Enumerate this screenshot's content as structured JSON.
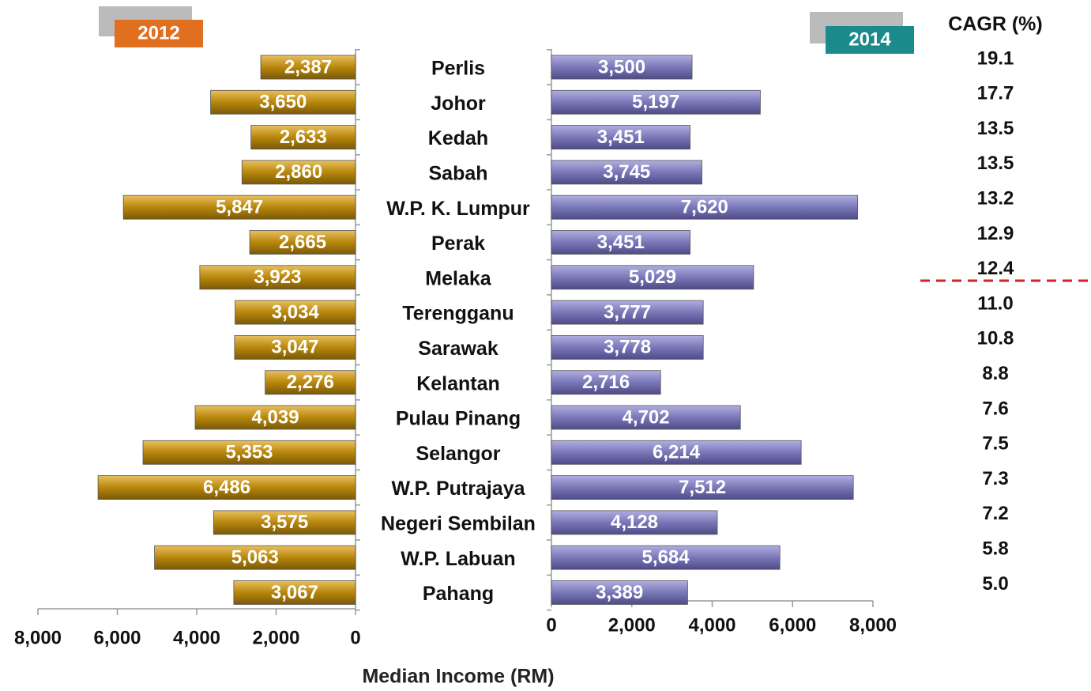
{
  "chart_data": {
    "type": "bar",
    "x_label": "Median Income (RM)",
    "categories": [
      "Perlis",
      "Johor",
      "Kedah",
      "Sabah",
      "W.P. K. Lumpur",
      "Perak",
      "Melaka",
      "Terengganu",
      "Sarawak",
      "Kelantan",
      "Pulau Pinang",
      "Selangor",
      "W.P. Putrajaya",
      "Negeri Sembilan",
      "W.P. Labuan",
      "Pahang"
    ],
    "series": [
      {
        "name": "2012",
        "color": "#b8860b",
        "legend_color": "#e07020",
        "values": [
          2387,
          3650,
          2633,
          2860,
          5847,
          2665,
          3923,
          3034,
          3047,
          2276,
          4039,
          5353,
          6486,
          3575,
          5063,
          3067
        ],
        "value_labels": [
          "2,387",
          "3,650",
          "2,633",
          "2,860",
          "5,847",
          "2,665",
          "3,923",
          "3,034",
          "3,047",
          "2,276",
          "4,039",
          "5,353",
          "6,486",
          "3,575",
          "5,063",
          "3,067"
        ]
      },
      {
        "name": "2014",
        "color": "#7a77b8",
        "legend_color": "#1a8a8a",
        "axis": "x2",
        "values": [
          3500,
          5197,
          3451,
          3745,
          7620,
          3451,
          5029,
          3777,
          3778,
          2716,
          4702,
          6214,
          7512,
          4128,
          5684,
          3389
        ],
        "value_labels": [
          "3,500",
          "5,197",
          "3,451",
          "3,745",
          "7,620",
          "3,451",
          "5,029",
          "3,777",
          "3,778",
          "2,716",
          "4,702",
          "6,214",
          "7,512",
          "4,128",
          "5,684",
          "3,389"
        ]
      }
    ],
    "xlim": [
      8000,
      0
    ],
    "xticks": [
      {
        "value": 8000,
        "label": "8,000"
      },
      {
        "value": 6000,
        "label": "6,000"
      },
      {
        "value": 4000,
        "label": "4,000"
      },
      {
        "value": 2000,
        "label": "2,000"
      },
      0
    ],
    "x2lim": [
      0,
      8000
    ],
    "x2ticks": [
      0,
      {
        "value": 2000,
        "label": "2,000"
      },
      {
        "value": 4000,
        "label": "4,000"
      },
      {
        "value": 6000,
        "label": "6,000"
      },
      {
        "value": 8000,
        "label": "8,000"
      }
    ],
    "cagr": {
      "title": "CAGR (%)",
      "values": [
        19.1,
        17.7,
        13.5,
        13.5,
        13.2,
        12.9,
        12.4,
        11.0,
        10.8,
        8.8,
        7.6,
        7.5,
        7.3,
        7.2,
        5.8,
        5.0
      ],
      "value_labels": [
        "19.1",
        "17.7",
        "13.5",
        "13.5",
        "13.2",
        "12.9",
        "12.4",
        "11.0",
        "10.8",
        "8.8",
        "7.6",
        "7.5",
        "7.3",
        "7.2",
        "5.8",
        "5.0"
      ]
    }
  }
}
